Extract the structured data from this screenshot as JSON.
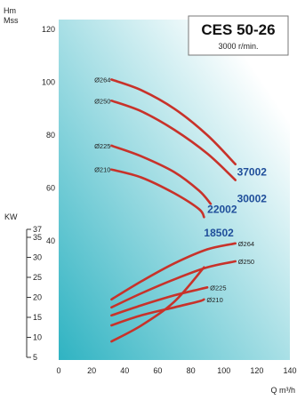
{
  "chart_data": {
    "type": "line",
    "title": "CES 50-26",
    "subtitle": "3000 r/min.",
    "y_head_label": [
      "Hm",
      "Mss"
    ],
    "kw_axis_label": "KW",
    "x_unit_label": "Q m³/h",
    "x_ticks": [
      "0",
      "20",
      "40",
      "60",
      "80",
      "100",
      "120",
      "140"
    ],
    "head_ticks": [
      "120",
      "100",
      "80",
      "60",
      "40"
    ],
    "kw_ticks": [
      "37",
      "35",
      "30",
      "25",
      "20",
      "15",
      "10",
      "5"
    ],
    "xlim": [
      0,
      140
    ],
    "head_ylim": [
      0,
      120
    ],
    "kw_ylim": [
      5,
      37
    ],
    "gradient_colors": [
      "#2fb3c2",
      "#ffffff"
    ],
    "curve_color": "#c8322a",
    "model_label_color": "#1f4e9a",
    "head_series": [
      {
        "name": "Ø264",
        "x": [
          32,
          50,
          70,
          90,
          107
        ],
        "y": [
          101,
          97,
          90,
          80,
          69
        ]
      },
      {
        "name": "Ø250",
        "x": [
          32,
          50,
          70,
          90,
          107
        ],
        "y": [
          93,
          89,
          82,
          73,
          63
        ]
      },
      {
        "name": "Ø225",
        "x": [
          32,
          50,
          70,
          85,
          92
        ],
        "y": [
          76,
          72,
          66,
          59,
          54
        ]
      },
      {
        "name": "Ø210",
        "x": [
          32,
          50,
          70,
          85,
          88
        ],
        "y": [
          67,
          64,
          58,
          52,
          49
        ]
      }
    ],
    "model_labels": [
      {
        "name": "37002",
        "x": 108,
        "y": 66
      },
      {
        "name": "30002",
        "x": 108,
        "y": 56
      },
      {
        "name": "22002",
        "x": 90,
        "y": 52
      },
      {
        "name": "18502",
        "x": 88,
        "y": 43
      }
    ],
    "npsh_series": {
      "x": [
        32,
        50,
        70,
        88
      ],
      "y": [
        2,
        8,
        17,
        30
      ]
    },
    "power_series": [
      {
        "name": "Ø264",
        "x": [
          32,
          50,
          70,
          90,
          107
        ],
        "y": [
          19.5,
          24,
          28.5,
          32,
          33.5
        ]
      },
      {
        "name": "Ø250",
        "x": [
          32,
          50,
          70,
          90,
          107
        ],
        "y": [
          17.5,
          21,
          24.5,
          27.5,
          29
        ]
      },
      {
        "name": "Ø225",
        "x": [
          32,
          50,
          70,
          85,
          90
        ],
        "y": [
          15.5,
          18,
          20.5,
          22,
          22.5
        ]
      },
      {
        "name": "Ø210",
        "x": [
          32,
          50,
          70,
          85,
          88
        ],
        "y": [
          13,
          15.5,
          17.5,
          19,
          19.5
        ]
      }
    ]
  }
}
